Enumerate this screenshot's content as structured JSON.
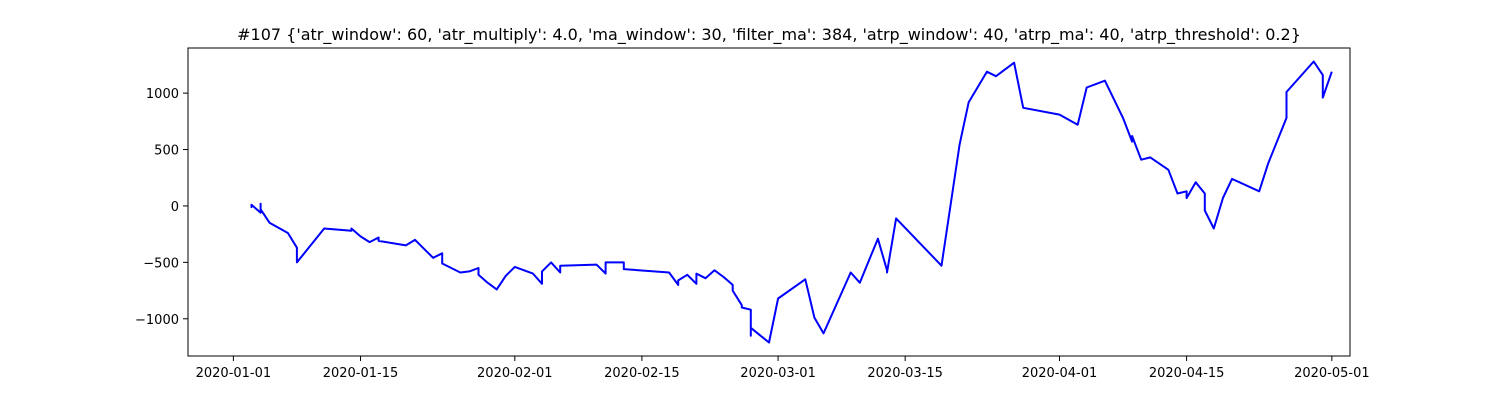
{
  "chart_data": {
    "type": "line",
    "title": "#107 {'atr_window': 60, 'atr_multiply': 4.0, 'ma_window': 30, 'filter_ma': 384, 'atrp_window': 40, 'atrp_ma': 40, 'atrp_threshold': 0.2}",
    "xlabel": "",
    "ylabel": "",
    "xlim": [
      "2019-12-27",
      "2020-05-03"
    ],
    "ylim": [
      -1330,
      1400
    ],
    "grid": false,
    "x_ticks": [
      "2020-01-01",
      "2020-01-15",
      "2020-02-01",
      "2020-02-15",
      "2020-03-01",
      "2020-03-15",
      "2020-04-01",
      "2020-04-15",
      "2020-05-01"
    ],
    "y_ticks": [
      -1000,
      -500,
      0,
      500,
      1000
    ],
    "series": [
      {
        "name": "",
        "color": "#0000ff",
        "points": [
          [
            "2020-01-03",
            0
          ],
          [
            "2020-01-03",
            -10
          ],
          [
            "2020-01-03",
            10
          ],
          [
            "2020-01-04",
            -60
          ],
          [
            "2020-01-04",
            20
          ],
          [
            "2020-01-04",
            -30
          ],
          [
            "2020-01-05",
            -150
          ],
          [
            "2020-01-07",
            -240
          ],
          [
            "2020-01-08",
            -370
          ],
          [
            "2020-01-08",
            -500
          ],
          [
            "2020-01-11",
            -200
          ],
          [
            "2020-01-14",
            -220
          ],
          [
            "2020-01-14",
            -200
          ],
          [
            "2020-01-15",
            -270
          ],
          [
            "2020-01-16",
            -320
          ],
          [
            "2020-01-17",
            -280
          ],
          [
            "2020-01-17",
            -310
          ],
          [
            "2020-01-20",
            -350
          ],
          [
            "2020-01-21",
            -300
          ],
          [
            "2020-01-22",
            -380
          ],
          [
            "2020-01-23",
            -460
          ],
          [
            "2020-01-24",
            -420
          ],
          [
            "2020-01-24",
            -510
          ],
          [
            "2020-01-26",
            -590
          ],
          [
            "2020-01-27",
            -580
          ],
          [
            "2020-01-28",
            -550
          ],
          [
            "2020-01-28",
            -610
          ],
          [
            "2020-01-29",
            -680
          ],
          [
            "2020-01-30",
            -740
          ],
          [
            "2020-01-31",
            -620
          ],
          [
            "2020-02-01",
            -540
          ],
          [
            "2020-02-03",
            -600
          ],
          [
            "2020-02-04",
            -690
          ],
          [
            "2020-02-04",
            -580
          ],
          [
            "2020-02-05",
            -500
          ],
          [
            "2020-02-06",
            -590
          ],
          [
            "2020-02-06",
            -530
          ],
          [
            "2020-02-10",
            -520
          ],
          [
            "2020-02-11",
            -600
          ],
          [
            "2020-02-11",
            -500
          ],
          [
            "2020-02-13",
            -500
          ],
          [
            "2020-02-13",
            -560
          ],
          [
            "2020-02-18",
            -590
          ],
          [
            "2020-02-19",
            -700
          ],
          [
            "2020-02-19",
            -660
          ],
          [
            "2020-02-20",
            -610
          ],
          [
            "2020-02-21",
            -690
          ],
          [
            "2020-02-21",
            -600
          ],
          [
            "2020-02-22",
            -640
          ],
          [
            "2020-02-23",
            -570
          ],
          [
            "2020-02-24",
            -630
          ],
          [
            "2020-02-25",
            -700
          ],
          [
            "2020-02-25",
            -750
          ],
          [
            "2020-02-26",
            -880
          ],
          [
            "2020-02-26",
            -900
          ],
          [
            "2020-02-27",
            -920
          ],
          [
            "2020-02-27",
            -1150
          ],
          [
            "2020-02-27",
            -1080
          ],
          [
            "2020-02-29",
            -1210
          ],
          [
            "2020-03-01",
            -820
          ],
          [
            "2020-03-04",
            -650
          ],
          [
            "2020-03-05",
            -990
          ],
          [
            "2020-03-06",
            -1130
          ],
          [
            "2020-03-09",
            -590
          ],
          [
            "2020-03-10",
            -680
          ],
          [
            "2020-03-12",
            -290
          ],
          [
            "2020-03-13",
            -570
          ],
          [
            "2020-03-13",
            -590
          ],
          [
            "2020-03-14",
            -110
          ],
          [
            "2020-03-19",
            -530
          ],
          [
            "2020-03-21",
            545
          ],
          [
            "2020-03-22",
            920
          ],
          [
            "2020-03-24",
            1190
          ],
          [
            "2020-03-25",
            1150
          ],
          [
            "2020-03-27",
            1270
          ],
          [
            "2020-03-28",
            870
          ],
          [
            "2020-04-01",
            810
          ],
          [
            "2020-04-03",
            720
          ],
          [
            "2020-04-04",
            1050
          ],
          [
            "2020-04-06",
            1110
          ],
          [
            "2020-04-08",
            780
          ],
          [
            "2020-04-09",
            570
          ],
          [
            "2020-04-09",
            620
          ],
          [
            "2020-04-10",
            410
          ],
          [
            "2020-04-11",
            430
          ],
          [
            "2020-04-13",
            320
          ],
          [
            "2020-04-14",
            110
          ],
          [
            "2020-04-15",
            130
          ],
          [
            "2020-04-15",
            70
          ],
          [
            "2020-04-16",
            210
          ],
          [
            "2020-04-17",
            110
          ],
          [
            "2020-04-17",
            -40
          ],
          [
            "2020-04-18",
            -200
          ],
          [
            "2020-04-19",
            70
          ],
          [
            "2020-04-20",
            240
          ],
          [
            "2020-04-23",
            130
          ],
          [
            "2020-04-24",
            380
          ],
          [
            "2020-04-26",
            780
          ],
          [
            "2020-04-26",
            1010
          ],
          [
            "2020-04-29",
            1280
          ],
          [
            "2020-04-30",
            1160
          ],
          [
            "2020-04-30",
            960
          ],
          [
            "2020-05-01",
            1190
          ]
        ]
      }
    ]
  }
}
